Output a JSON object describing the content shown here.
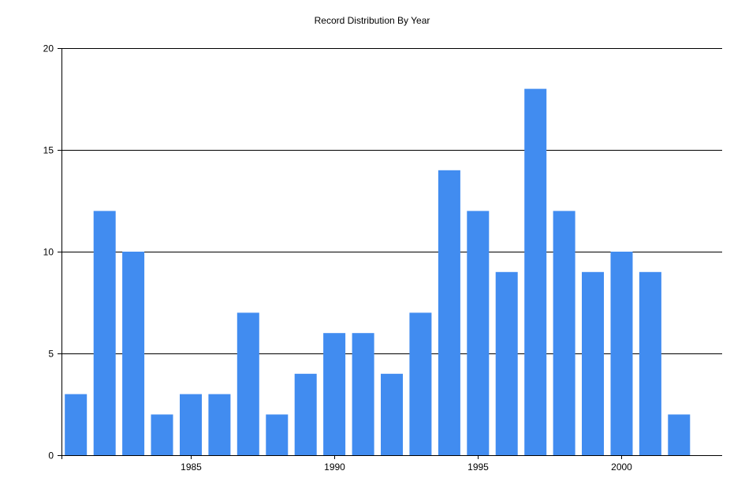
{
  "chart_data": {
    "type": "bar",
    "title": "Record Distribution By Year",
    "xlabel": "",
    "ylabel": "",
    "x": [
      1981,
      1982,
      1983,
      1984,
      1985,
      1986,
      1987,
      1988,
      1989,
      1990,
      1991,
      1992,
      1993,
      1994,
      1995,
      1996,
      1997,
      1998,
      1999,
      2000,
      2001,
      2002
    ],
    "values": [
      3,
      12,
      10,
      2,
      3,
      3,
      7,
      2,
      4,
      6,
      6,
      4,
      7,
      14,
      12,
      9,
      18,
      12,
      9,
      10,
      9,
      2
    ],
    "ylim": [
      0,
      20
    ],
    "yticks": [
      0,
      5,
      10,
      15,
      20
    ],
    "xticks": [
      1985,
      1990,
      1995,
      2000
    ],
    "grid": "horizontal",
    "bar_color": "#418CF0",
    "legend": "none"
  }
}
